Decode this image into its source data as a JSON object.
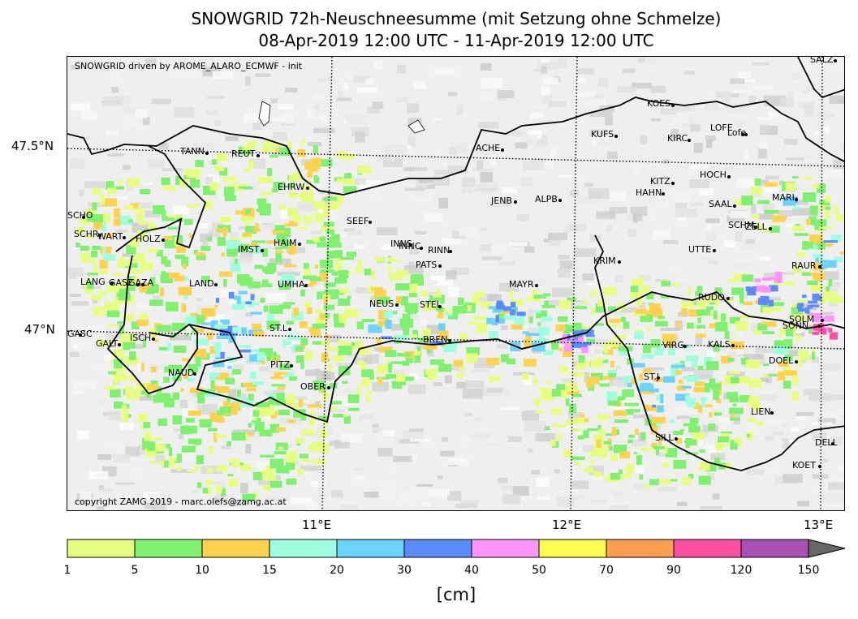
{
  "title": {
    "line1": "SNOWGRID 72h-Neuschneesumme (mit Setzung ohne Schmelze)",
    "line2": "08-Apr-2019 12:00 UTC - 11-Apr-2019 12:00 UTC"
  },
  "map": {
    "driven_text": "SNOWGRID driven by AROME_ALARO_ECMWF - init",
    "copyright_text": "copyright ZAMG 2019 - marc.olefs@zamg.ac.at",
    "lat_labels": [
      "47.5°N",
      "47°N"
    ],
    "lon_labels": [
      "11°E",
      "12°E",
      "13°E"
    ],
    "stations": [
      {
        "name": "SALZ"
      },
      {
        "name": "KOES"
      },
      {
        "name": "LOFE"
      },
      {
        "name": "Lofe"
      },
      {
        "name": "KUFS"
      },
      {
        "name": "KIRC"
      },
      {
        "name": "ACHE"
      },
      {
        "name": "TANN"
      },
      {
        "name": "REUT"
      },
      {
        "name": "HOCH"
      },
      {
        "name": "KITZ"
      },
      {
        "name": "HAHN"
      },
      {
        "name": "EHRW"
      },
      {
        "name": "JENB"
      },
      {
        "name": "ALPB"
      },
      {
        "name": "MARI"
      },
      {
        "name": "SAAL"
      },
      {
        "name": "SCHO"
      },
      {
        "name": "SEEF"
      },
      {
        "name": "SCHM"
      },
      {
        "name": "ZELL"
      },
      {
        "name": "SCHR"
      },
      {
        "name": "WART"
      },
      {
        "name": "HOLZ"
      },
      {
        "name": "HAIM"
      },
      {
        "name": "INNS"
      },
      {
        "name": "INNC"
      },
      {
        "name": "RINN"
      },
      {
        "name": "UTTE"
      },
      {
        "name": "IMST"
      },
      {
        "name": "KRIM"
      },
      {
        "name": "PATS"
      },
      {
        "name": "RAUR"
      },
      {
        "name": "LANG"
      },
      {
        "name": "GASZ"
      },
      {
        "name": "GAZA"
      },
      {
        "name": "LAND"
      },
      {
        "name": "UMHA"
      },
      {
        "name": "MAYR"
      },
      {
        "name": "RUDO"
      },
      {
        "name": "NEUS"
      },
      {
        "name": "STEI"
      },
      {
        "name": "SOLM"
      },
      {
        "name": "SONN"
      },
      {
        "name": "ST.L"
      },
      {
        "name": "BREN"
      },
      {
        "name": "GASC"
      },
      {
        "name": "ISCH"
      },
      {
        "name": "GALT"
      },
      {
        "name": "VIRG"
      },
      {
        "name": "KALS"
      },
      {
        "name": "DOEL"
      },
      {
        "name": "PITZ"
      },
      {
        "name": "NAUD"
      },
      {
        "name": "ST.J"
      },
      {
        "name": "OBER"
      },
      {
        "name": "LIEN"
      },
      {
        "name": "SILL"
      },
      {
        "name": "DELL"
      },
      {
        "name": "KOET"
      }
    ]
  },
  "colorbar": {
    "unit": "[cm]",
    "ticks": [
      "1",
      "5",
      "10",
      "15",
      "20",
      "30",
      "40",
      "50",
      "70",
      "90",
      "120",
      "150"
    ],
    "colors": [
      "#e6ff80",
      "#80f070",
      "#ffd250",
      "#a0ffe0",
      "#6ed2ff",
      "#5a8cff",
      "#ff96ff",
      "#ffff50",
      "#ffa050",
      "#ff50a0",
      "#aa50b4"
    ],
    "extend_color": "#666666"
  }
}
